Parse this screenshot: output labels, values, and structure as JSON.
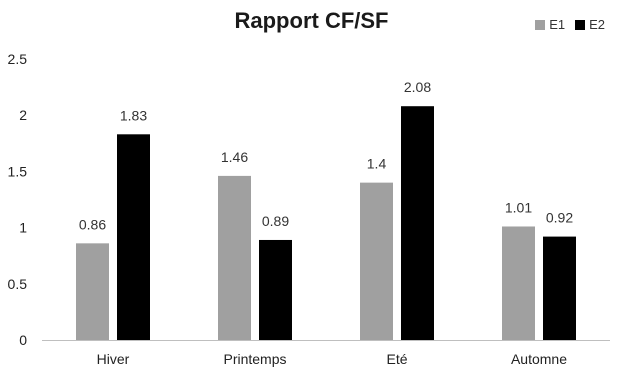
{
  "chart_data": {
    "type": "bar",
    "title": "Rapport CF/SF",
    "categories": [
      "Hiver",
      "Printemps",
      "Eté",
      "Automne"
    ],
    "series": [
      {
        "name": "E1",
        "color": "#a0a0a0",
        "values": [
          0.86,
          1.46,
          1.4,
          1.01
        ],
        "labels": [
          "0.86",
          "1.46",
          "1.4",
          "1.01"
        ]
      },
      {
        "name": "E2",
        "color": "#000000",
        "values": [
          1.83,
          0.89,
          2.08,
          0.92
        ],
        "labels": [
          "1.83",
          "0.89",
          "2.08",
          "0.92"
        ]
      }
    ],
    "yticks": [
      "0",
      "0.5",
      "1",
      "1.5",
      "2",
      "2.5"
    ],
    "ylim": [
      0,
      2.5
    ],
    "grid": false,
    "legend": "top-right"
  }
}
